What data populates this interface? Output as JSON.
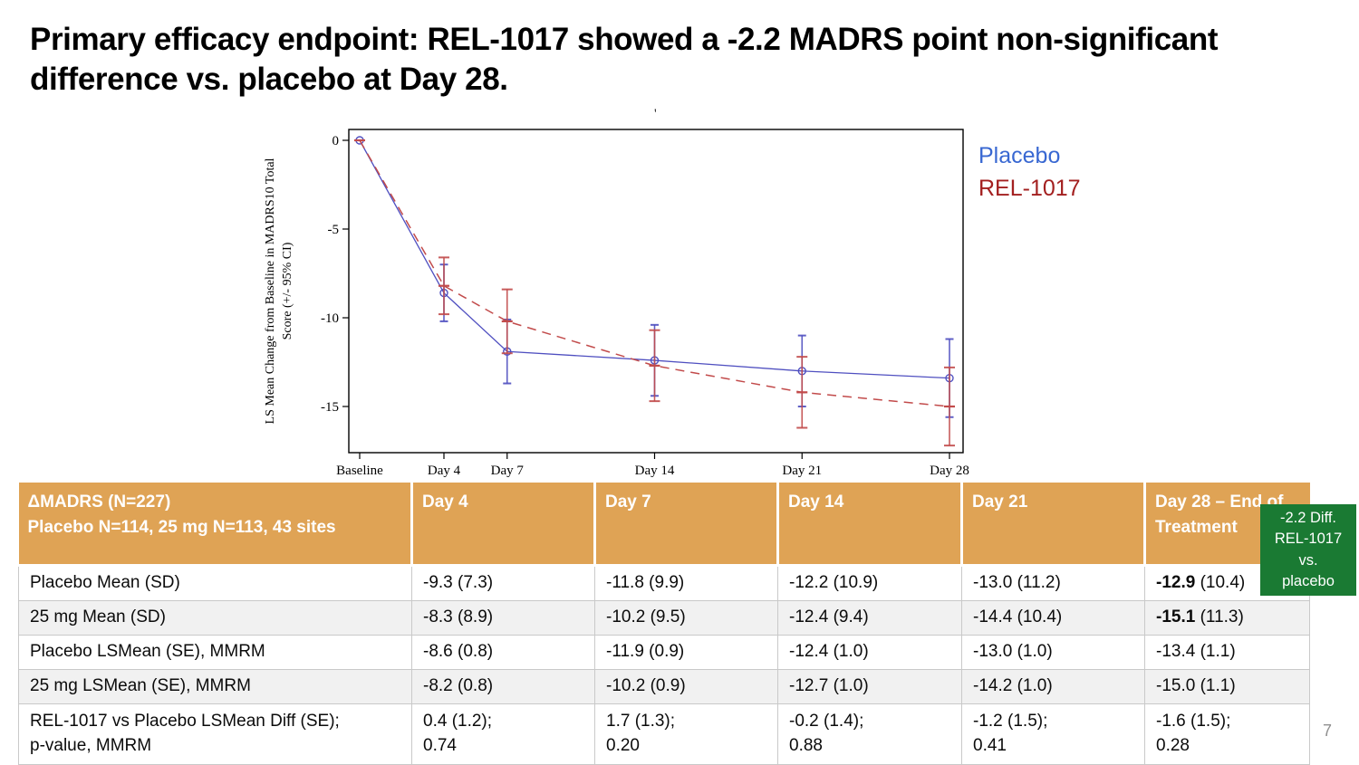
{
  "slide": {
    "title": "Primary efficacy endpoint: REL-1017 showed a -2.2 MADRS point non-significant difference vs. placebo at Day 28.",
    "page_number": "7"
  },
  "chart_data": {
    "type": "line",
    "title": "",
    "xlabel": "",
    "ylabel_lines": [
      "LS Mean Change from Baseline in MADRS10 Total",
      "Score (+/- 95% CI)"
    ],
    "x_categories": [
      "Baseline",
      "Day 4",
      "Day 7",
      "Day 14",
      "Day 21",
      "Day 28"
    ],
    "x_days": [
      0,
      4,
      7,
      14,
      21,
      28
    ],
    "y_ticks": [
      0,
      -5,
      -10,
      -15
    ],
    "ylim": [
      -17.6,
      0.6
    ],
    "grid": "off",
    "legend_position": "right-outside",
    "stray_mark": "'",
    "series": [
      {
        "name": "Placebo",
        "color": "#4F4FC0",
        "line_style": "solid",
        "marker": "circle",
        "values": [
          0,
          -8.6,
          -11.9,
          -12.4,
          -13.0,
          -13.4
        ],
        "ci_halfwidth": [
          0,
          1.6,
          1.8,
          2.0,
          2.0,
          2.2
        ]
      },
      {
        "name": "REL-1017",
        "color": "#C24B4B",
        "line_style": "dashed",
        "marker": "dash",
        "values": [
          0,
          -8.2,
          -10.2,
          -12.7,
          -14.2,
          -15.0
        ],
        "ci_halfwidth": [
          0,
          1.6,
          1.8,
          2.0,
          2.0,
          2.2
        ]
      }
    ],
    "legend": [
      {
        "label": "Placebo",
        "color": "#3968D2"
      },
      {
        "label": "REL-1017",
        "color": "#A32020"
      }
    ]
  },
  "table": {
    "header_col0": [
      "ΔMADRS (N=227)",
      "Placebo N=114, 25 mg N=113, 43 sites"
    ],
    "columns": [
      "Day 4",
      "Day 7",
      "Day 14",
      "Day 21",
      "Day 28 – End of Treatment"
    ],
    "rows": [
      {
        "label": "Placebo Mean (SD)",
        "cells": [
          {
            "text": "-9.3 (7.3)"
          },
          {
            "text": "-11.8 (9.9)"
          },
          {
            "text": "-12.2 (10.9)"
          },
          {
            "text": "-13.0 (11.2)"
          },
          {
            "text": "-12.9 (10.4)",
            "bold": "-12.9"
          }
        ]
      },
      {
        "label": "25 mg  Mean (SD)",
        "cells": [
          {
            "text": "-8.3 (8.9)"
          },
          {
            "text": "-10.2 (9.5)"
          },
          {
            "text": "-12.4 (9.4)"
          },
          {
            "text": "-14.4 (10.4)"
          },
          {
            "text": "-15.1 (11.3)",
            "bold": "-15.1"
          }
        ]
      },
      {
        "label": "Placebo LSMean (SE), MMRM",
        "cells": [
          {
            "text": "-8.6 (0.8)"
          },
          {
            "text": "-11.9 (0.9)"
          },
          {
            "text": "-12.4 (1.0)"
          },
          {
            "text": "-13.0 (1.0)"
          },
          {
            "text": "-13.4 (1.1)"
          }
        ]
      },
      {
        "label": "25 mg LSMean (SE), MMRM",
        "cells": [
          {
            "text": "-8.2 (0.8)"
          },
          {
            "text": "-10.2 (0.9)"
          },
          {
            "text": "-12.7 (1.0)"
          },
          {
            "text": "-14.2 (1.0)"
          },
          {
            "text": "-15.0 (1.1)"
          }
        ]
      },
      {
        "label": "REL-1017 vs Placebo LSMean Diff (SE);\np-value, MMRM",
        "cells": [
          {
            "text": "0.4 (1.2);\n0.74"
          },
          {
            "text": "1.7 (1.3);\n0.20"
          },
          {
            "text": "-0.2 (1.4);\n0.88"
          },
          {
            "text": "-1.2 (1.5);\n0.41"
          },
          {
            "text": "-1.6 (1.5);\n0.28"
          }
        ]
      }
    ]
  },
  "badge": {
    "lines": [
      "-2.2 Diff.",
      "REL-1017",
      "vs.",
      "placebo"
    ],
    "bg_color": "#1A7A33"
  }
}
